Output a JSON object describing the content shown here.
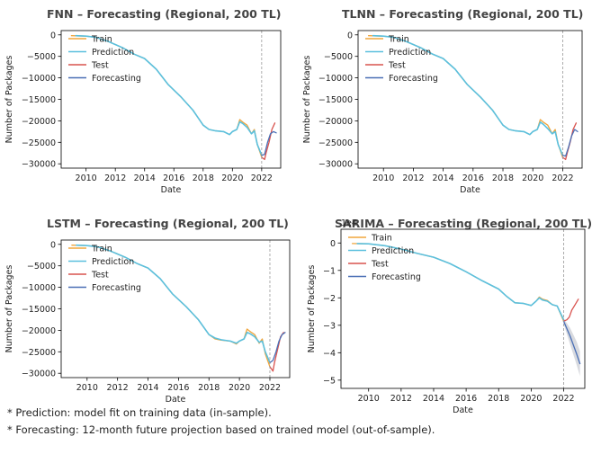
{
  "footnotes": [
    "* Prediction: model fit on training data (in-sample).",
    "* Forecasting: 12-month future projection based on trained model (out-of-sample)."
  ],
  "colors": {
    "train": "#f0a53c",
    "prediction": "#5bc0de",
    "test": "#d9534f",
    "forecasting": "#4a6fb5",
    "band": "#b8bcc4",
    "split": "#999999"
  },
  "chart_data": [
    {
      "type": "line",
      "title": "FNN – Forecasting (Regional, 200 TL)",
      "xlabel": "Date",
      "ylabel": "Number of Packages",
      "xlim": [
        2008.3,
        2023.3
      ],
      "ylim": [
        -31000,
        1000
      ],
      "xticks": [
        2010,
        2012,
        2014,
        2016,
        2018,
        2020,
        2022
      ],
      "yticks": [
        0,
        -5000,
        -10000,
        -15000,
        -20000,
        -25000,
        -30000
      ],
      "ytick_labels": [
        "0",
        "−5000",
        "−10000",
        "−15000",
        "−20000",
        "−25000",
        "−30000"
      ],
      "scale_label": "",
      "split_x": 2022.0,
      "legend": [
        "Train",
        "Prediction",
        "Test",
        "Forecasting"
      ],
      "legend_position": "top-left",
      "series": [
        {
          "name": "Train",
          "x": [
            2009.0,
            2010.0,
            2010.7,
            2011.5,
            2012.5,
            2013.3,
            2014.0,
            2014.8,
            2015.6,
            2016.5,
            2017.3,
            2018.0,
            2018.4,
            2018.8,
            2019.4,
            2019.8,
            2020.0,
            2020.3,
            2020.5,
            2020.7,
            2021.0,
            2021.3,
            2021.5,
            2021.7,
            2022.0
          ],
          "y": [
            -200,
            -300,
            -600,
            -1500,
            -3000,
            -4500,
            -5500,
            -8000,
            -11500,
            -14500,
            -17500,
            -21000,
            -22000,
            -22300,
            -22500,
            -23200,
            -22500,
            -22000,
            -19700,
            -20300,
            -21000,
            -23000,
            -22000,
            -25500,
            -28500
          ]
        },
        {
          "name": "Prediction",
          "x": [
            2009.3,
            2010.0,
            2010.7,
            2011.5,
            2012.5,
            2013.3,
            2014.0,
            2014.8,
            2015.6,
            2016.5,
            2017.3,
            2018.0,
            2018.4,
            2018.8,
            2019.4,
            2019.8,
            2020.0,
            2020.3,
            2020.5,
            2020.7,
            2021.0,
            2021.3,
            2021.5,
            2021.7,
            2022.0
          ],
          "y": [
            -200,
            -300,
            -600,
            -1500,
            -3000,
            -4500,
            -5500,
            -8000,
            -11500,
            -14500,
            -17500,
            -21000,
            -22000,
            -22300,
            -22500,
            -23200,
            -22500,
            -22000,
            -20200,
            -20600,
            -21500,
            -23000,
            -22300,
            -25500,
            -28000
          ]
        },
        {
          "name": "Test",
          "x": [
            2022.0,
            2022.2,
            2022.3,
            2022.5,
            2022.7,
            2022.9
          ],
          "y": [
            -28500,
            -29000,
            -27500,
            -25000,
            -22000,
            -20500
          ]
        },
        {
          "name": "Forecasting",
          "x": [
            2022.0,
            2022.2,
            2022.4,
            2022.6,
            2022.8,
            2023.0
          ],
          "y": [
            -28000,
            -27800,
            -25000,
            -23000,
            -22500,
            -22800
          ]
        }
      ]
    },
    {
      "type": "line",
      "title": "TLNN – Forecasting (Regional, 200 TL)",
      "xlabel": "Date",
      "ylabel": "Number of Packages",
      "xlim": [
        2008.3,
        2023.3
      ],
      "ylim": [
        -31000,
        1000
      ],
      "xticks": [
        2010,
        2012,
        2014,
        2016,
        2018,
        2020,
        2022
      ],
      "yticks": [
        0,
        -5000,
        -10000,
        -15000,
        -20000,
        -25000,
        -30000
      ],
      "ytick_labels": [
        "0",
        "−5000",
        "−10000",
        "−15000",
        "−20000",
        "−25000",
        "−30000"
      ],
      "scale_label": "",
      "split_x": 2022.0,
      "legend": [
        "Train",
        "Prediction",
        "Test",
        "Forecasting"
      ],
      "legend_position": "top-left",
      "series": [
        {
          "name": "Train",
          "x": [
            2009.0,
            2010.0,
            2010.7,
            2011.5,
            2012.5,
            2013.3,
            2014.0,
            2014.8,
            2015.6,
            2016.5,
            2017.3,
            2018.0,
            2018.4,
            2018.8,
            2019.4,
            2019.8,
            2020.0,
            2020.3,
            2020.5,
            2020.7,
            2021.0,
            2021.3,
            2021.5,
            2021.7,
            2022.0
          ],
          "y": [
            -200,
            -300,
            -600,
            -1500,
            -3000,
            -4500,
            -5500,
            -8000,
            -11500,
            -14500,
            -17500,
            -21000,
            -22000,
            -22300,
            -22500,
            -23200,
            -22500,
            -22000,
            -19700,
            -20300,
            -21000,
            -23000,
            -22000,
            -25500,
            -28500
          ]
        },
        {
          "name": "Prediction",
          "x": [
            2009.3,
            2010.0,
            2010.7,
            2011.5,
            2012.5,
            2013.3,
            2014.0,
            2014.8,
            2015.6,
            2016.5,
            2017.3,
            2018.0,
            2018.4,
            2018.8,
            2019.4,
            2019.8,
            2020.0,
            2020.3,
            2020.5,
            2020.7,
            2021.0,
            2021.3,
            2021.5,
            2021.7,
            2022.0
          ],
          "y": [
            -200,
            -300,
            -600,
            -1500,
            -3000,
            -4500,
            -5500,
            -8000,
            -11500,
            -14500,
            -17500,
            -21000,
            -22000,
            -22300,
            -22500,
            -23200,
            -22500,
            -22000,
            -20300,
            -20800,
            -21800,
            -23000,
            -22500,
            -25500,
            -28000
          ]
        },
        {
          "name": "Test",
          "x": [
            2022.0,
            2022.2,
            2022.3,
            2022.5,
            2022.7,
            2022.9
          ],
          "y": [
            -28500,
            -29000,
            -27500,
            -25000,
            -22000,
            -20500
          ]
        },
        {
          "name": "Forecasting",
          "x": [
            2022.0,
            2022.2,
            2022.4,
            2022.6,
            2022.8,
            2023.0
          ],
          "y": [
            -28000,
            -28200,
            -26000,
            -23500,
            -22000,
            -22500
          ]
        }
      ]
    },
    {
      "type": "line",
      "title": "LSTM – Forecasting (Regional, 200 TL)",
      "xlabel": "Date",
      "ylabel": "Number of Packages",
      "xlim": [
        2008.3,
        2023.3
      ],
      "ylim": [
        -31000,
        1000
      ],
      "xticks": [
        2010,
        2012,
        2014,
        2016,
        2018,
        2020,
        2022
      ],
      "yticks": [
        0,
        -5000,
        -10000,
        -15000,
        -20000,
        -25000,
        -30000
      ],
      "ytick_labels": [
        "0",
        "−5000",
        "−10000",
        "−15000",
        "−20000",
        "−25000",
        "−30000"
      ],
      "scale_label": "",
      "split_x": 2022.0,
      "legend": [
        "Train",
        "Prediction",
        "Test",
        "Forecasting"
      ],
      "legend_position": "top-left",
      "series": [
        {
          "name": "Train",
          "x": [
            2009.0,
            2010.0,
            2010.7,
            2011.5,
            2012.5,
            2013.3,
            2014.0,
            2014.8,
            2015.6,
            2016.5,
            2017.3,
            2018.0,
            2018.4,
            2018.8,
            2019.4,
            2019.8,
            2020.0,
            2020.3,
            2020.5,
            2020.7,
            2021.0,
            2021.3,
            2021.5,
            2021.7,
            2022.0
          ],
          "y": [
            -200,
            -300,
            -600,
            -1500,
            -3000,
            -4500,
            -5500,
            -8000,
            -11500,
            -14500,
            -17500,
            -21000,
            -22000,
            -22300,
            -22500,
            -23200,
            -22500,
            -22000,
            -19700,
            -20300,
            -21000,
            -23000,
            -22000,
            -25500,
            -28500
          ]
        },
        {
          "name": "Prediction",
          "x": [
            2009.3,
            2010.0,
            2010.7,
            2011.5,
            2012.5,
            2013.3,
            2014.0,
            2014.8,
            2015.6,
            2016.5,
            2017.3,
            2018.0,
            2018.4,
            2018.8,
            2019.4,
            2019.8,
            2020.0,
            2020.3,
            2020.5,
            2020.7,
            2021.0,
            2021.3,
            2021.5,
            2021.7,
            2022.0
          ],
          "y": [
            -200,
            -300,
            -600,
            -1500,
            -3000,
            -4500,
            -5500,
            -8000,
            -11500,
            -14500,
            -17500,
            -21000,
            -21800,
            -22200,
            -22500,
            -23000,
            -22500,
            -22000,
            -20500,
            -20800,
            -21500,
            -22800,
            -22500,
            -25000,
            -27500
          ]
        },
        {
          "name": "Test",
          "x": [
            2022.0,
            2022.2,
            2022.3,
            2022.5,
            2022.7,
            2022.9
          ],
          "y": [
            -28500,
            -29500,
            -27500,
            -24500,
            -21500,
            -20500
          ]
        },
        {
          "name": "Forecasting",
          "x": [
            2022.0,
            2022.2,
            2022.4,
            2022.6,
            2022.8,
            2023.0
          ],
          "y": [
            -27500,
            -27000,
            -25000,
            -22500,
            -21000,
            -20500
          ]
        }
      ]
    },
    {
      "type": "line",
      "title": "SARIMA – Forecasting (Regional, 200 TL)",
      "xlabel": "Date",
      "ylabel": "Number of Packages",
      "xlim": [
        2008.3,
        2023.3
      ],
      "ylim": [
        -5.3,
        0.5
      ],
      "xticks": [
        2010,
        2012,
        2014,
        2016,
        2018,
        2020,
        2022
      ],
      "yticks": [
        0,
        -1,
        -2,
        -3,
        -4,
        -5
      ],
      "ytick_labels": [
        "0",
        "−1",
        "−2",
        "−3",
        "−4",
        "−5"
      ],
      "scale_label": "1e4",
      "split_x": 2022.0,
      "legend": [
        "Train",
        "Prediction",
        "Test",
        "Forecasting"
      ],
      "legend_position": "top-left",
      "band": {
        "x": [
          2022.0,
          2022.4,
          2022.8,
          2023.0
        ],
        "lower": [
          -2.95,
          -3.7,
          -4.45,
          -4.85
        ],
        "upper": [
          -2.75,
          -3.1,
          -3.6,
          -3.95
        ]
      },
      "series": [
        {
          "name": "Train",
          "x": [
            2009.0,
            2010.0,
            2011.0,
            2012.0,
            2013.0,
            2014.0,
            2015.0,
            2016.0,
            2017.0,
            2018.0,
            2018.5,
            2019.0,
            2019.5,
            2020.0,
            2020.3,
            2020.5,
            2020.7,
            2021.0,
            2021.3,
            2021.6,
            2022.0
          ],
          "y": [
            -0.02,
            -0.03,
            -0.1,
            -0.22,
            -0.38,
            -0.52,
            -0.75,
            -1.05,
            -1.38,
            -1.68,
            -1.95,
            -2.18,
            -2.2,
            -2.28,
            -2.12,
            -1.97,
            -2.05,
            -2.1,
            -2.25,
            -2.3,
            -2.85
          ]
        },
        {
          "name": "Prediction",
          "x": [
            2009.3,
            2010.0,
            2011.0,
            2012.0,
            2013.0,
            2014.0,
            2015.0,
            2016.0,
            2017.0,
            2018.0,
            2018.5,
            2019.0,
            2019.5,
            2020.0,
            2020.3,
            2020.5,
            2020.7,
            2021.0,
            2021.3,
            2021.6,
            2022.0
          ],
          "y": [
            -0.02,
            -0.03,
            -0.1,
            -0.22,
            -0.38,
            -0.52,
            -0.75,
            -1.05,
            -1.38,
            -1.68,
            -1.95,
            -2.18,
            -2.2,
            -2.28,
            -2.12,
            -2.0,
            -2.08,
            -2.12,
            -2.25,
            -2.3,
            -2.8
          ]
        },
        {
          "name": "Test",
          "x": [
            2022.0,
            2022.2,
            2022.35,
            2022.5,
            2022.7,
            2022.9
          ],
          "y": [
            -2.85,
            -2.8,
            -2.7,
            -2.45,
            -2.25,
            -2.05
          ]
        },
        {
          "name": "Forecasting",
          "x": [
            2022.0,
            2022.4,
            2022.8,
            2023.0
          ],
          "y": [
            -2.85,
            -3.4,
            -4.05,
            -4.4
          ]
        }
      ]
    }
  ]
}
